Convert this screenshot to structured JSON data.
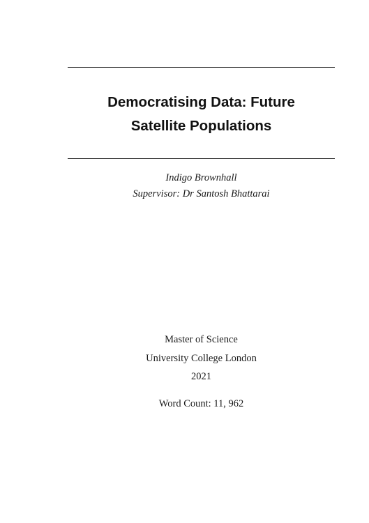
{
  "document": {
    "title_line_1": "Democratising Data: Future",
    "title_line_2": "Satellite Populations",
    "author": "Indigo Brownhall",
    "supervisor": "Supervisor: Dr Santosh Bhattarai",
    "degree": "Master of Science",
    "institution": "University College London",
    "year": "2021",
    "word_count": "Word Count: 11, 962"
  }
}
